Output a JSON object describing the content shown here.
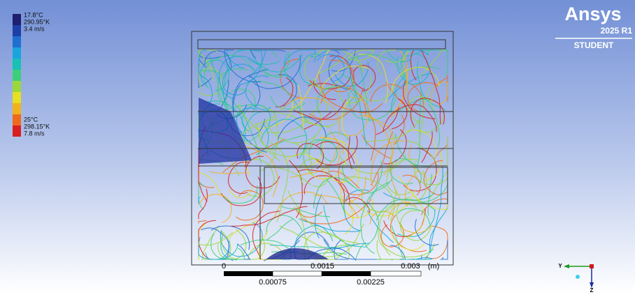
{
  "legend": {
    "max_labels": [
      "17.8°C",
      "290.95°K",
      "3.4 m/s"
    ],
    "min_labels": [
      "25°C",
      "298.15°K",
      "7.8 m/s"
    ]
  },
  "logo": {
    "name": "Ansys",
    "version": "2025 R1",
    "edition": "STUDENT"
  },
  "scale_bar": {
    "top_labels": [
      "0",
      "0.0015",
      "0.003"
    ],
    "unit": "(m)",
    "bottom_labels": [
      "0.00075",
      "0.00225"
    ]
  },
  "triad": {
    "y_axis": "Y",
    "z_axis": "Z"
  }
}
